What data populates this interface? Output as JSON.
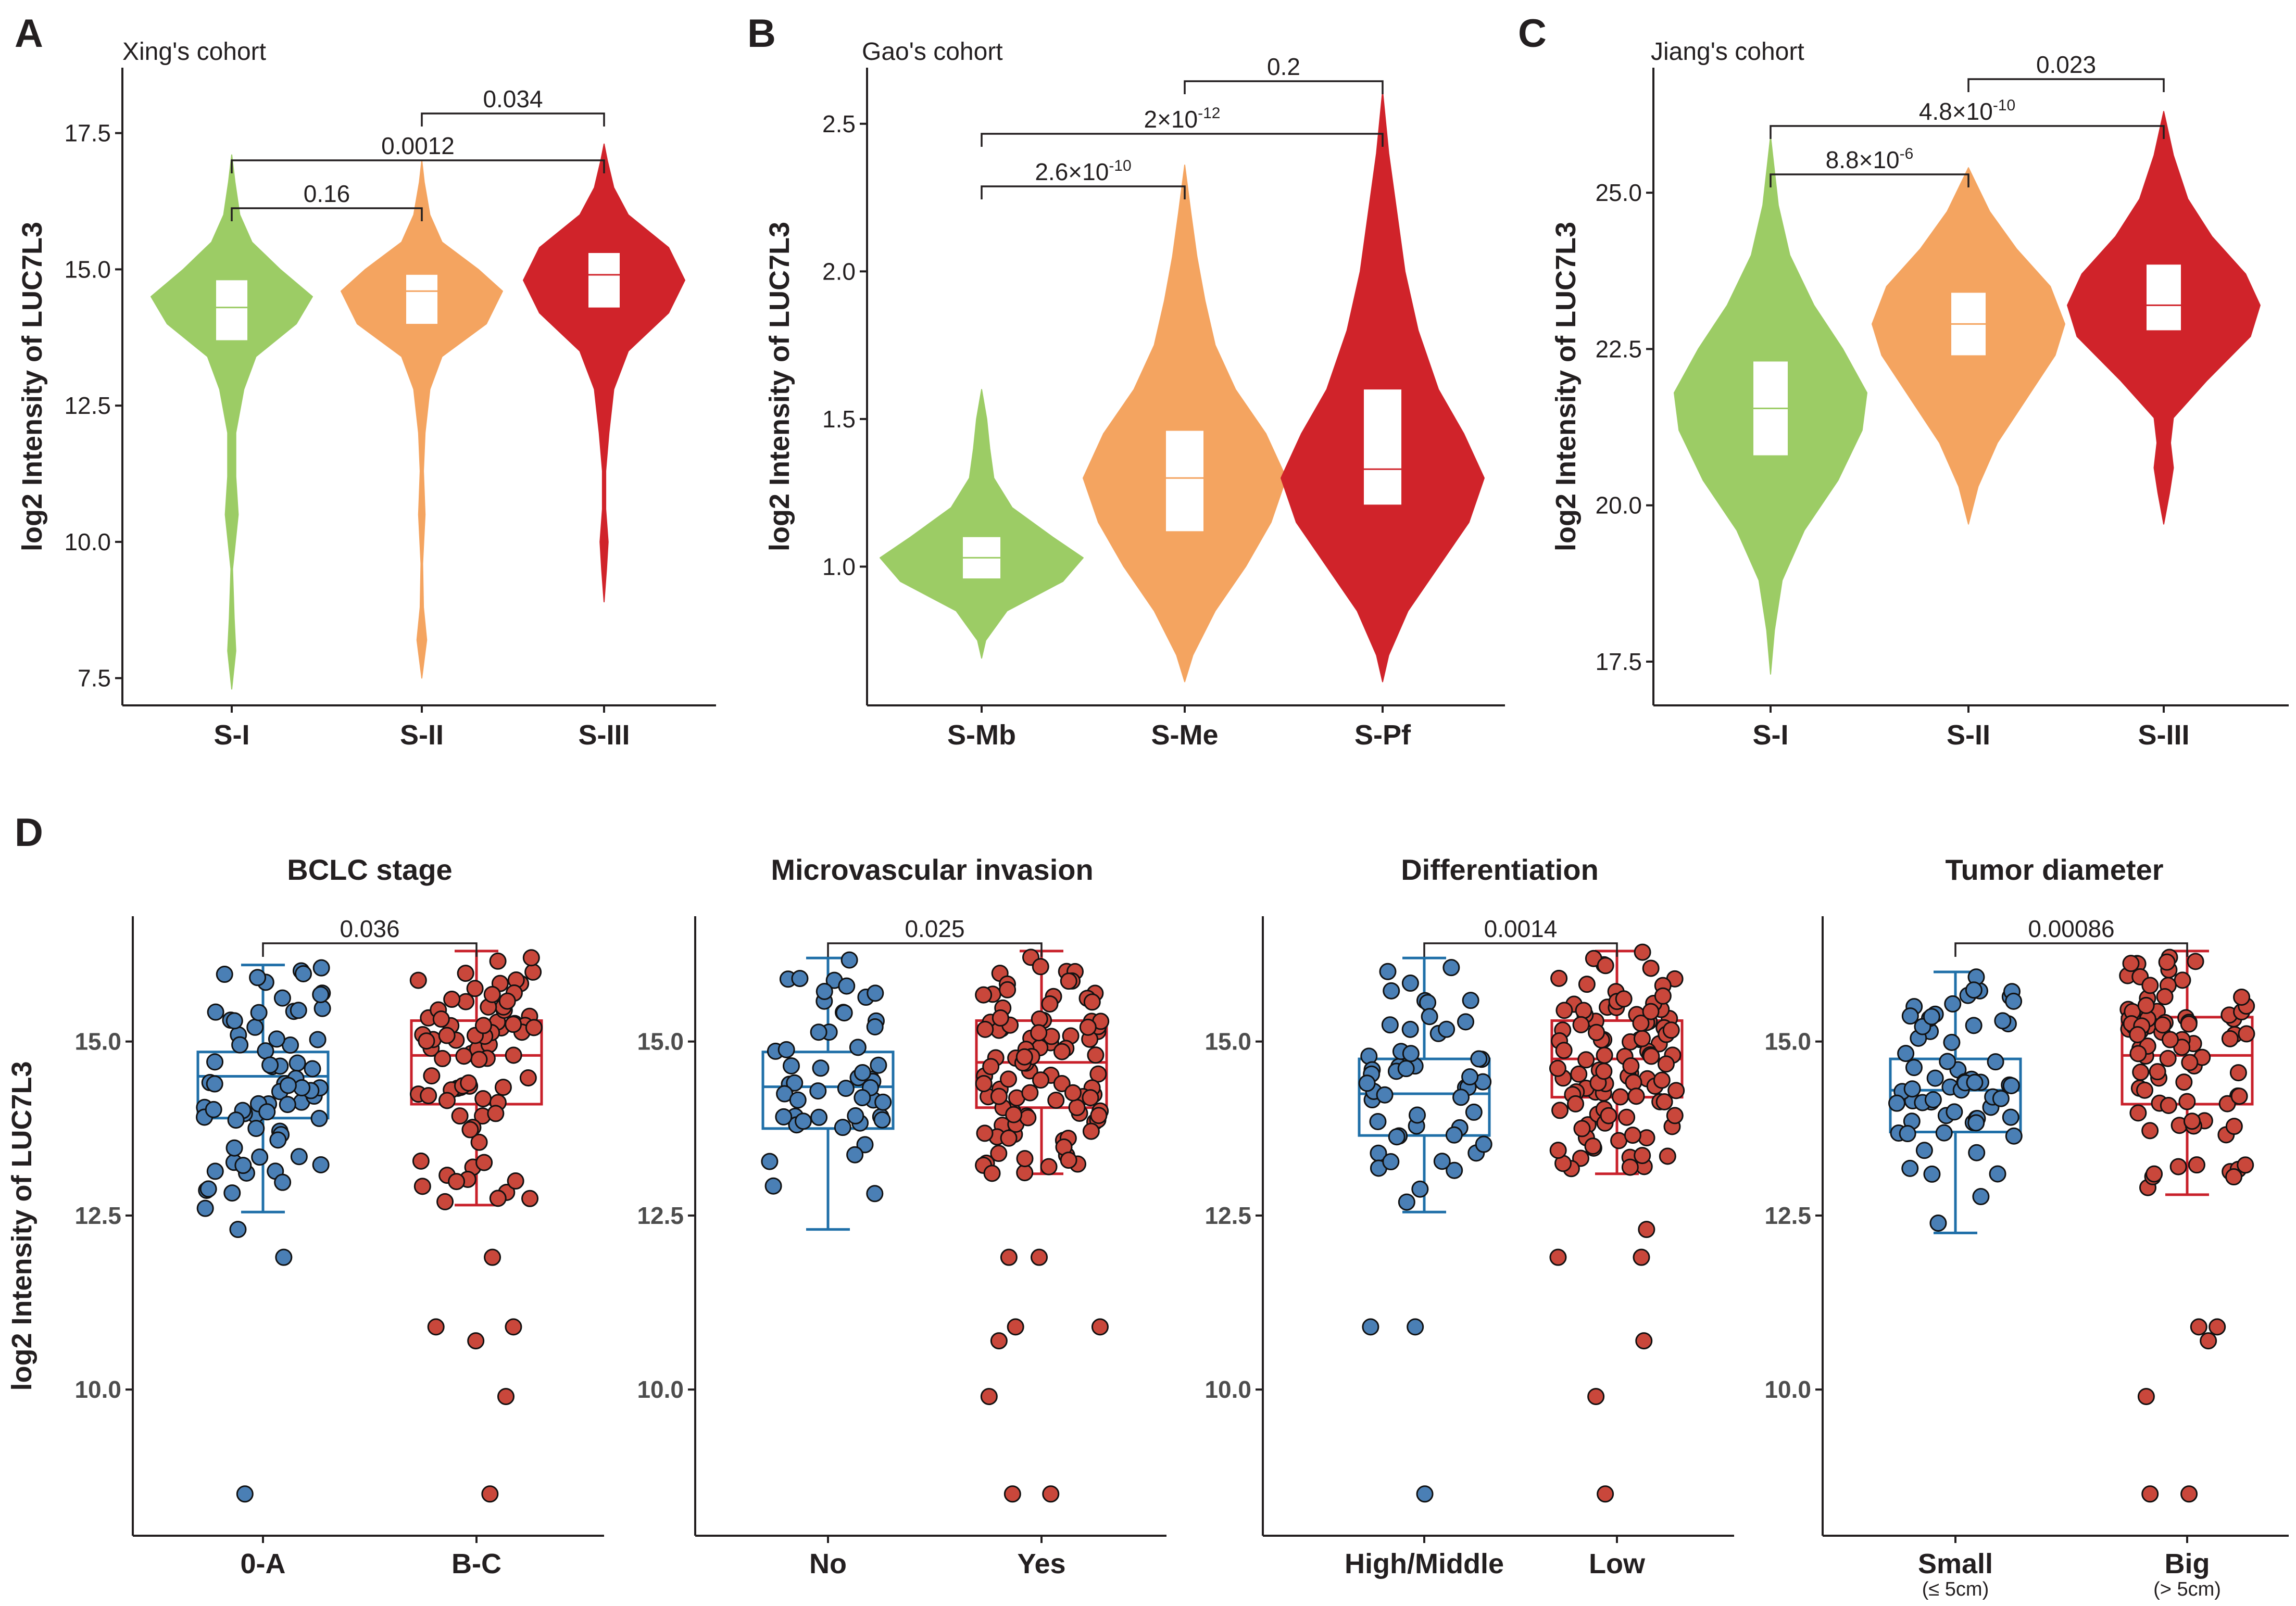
{
  "panels": [
    {
      "label": "A"
    },
    {
      "label": "B"
    },
    {
      "label": "C"
    },
    {
      "label": "D"
    }
  ],
  "colors": {
    "green": "#9ccc65",
    "orange": "#f4a460",
    "red": "#d0232a",
    "blue": "#1f6fa8",
    "blue_point": "#4a7fb5",
    "box_red": "#c8202a",
    "point_red": "#c9473b",
    "ink": "#231f20"
  },
  "shared_ylabel": "log2 Intensity of LUC7L3",
  "chart_data": [
    {
      "id": "A",
      "type": "violin",
      "title": "Xing's cohort",
      "ylabel": "log2 Intensity of LUC7L3",
      "ylim": [
        7.0,
        18.7
      ],
      "yticks": [
        7.5,
        10.0,
        12.5,
        15.0,
        17.5
      ],
      "ytick_labels": [
        "7.5",
        "10.0",
        "12.5",
        "15.0",
        "17.5"
      ],
      "categories": [
        "S-I",
        "S-II",
        "S-III"
      ],
      "violins": [
        {
          "group": "S-I",
          "color": "green",
          "min": 7.3,
          "max": 17.1,
          "q1": 13.7,
          "median": 14.3,
          "q3": 14.8,
          "profile": [
            [
              7.3,
              0.0
            ],
            [
              8.0,
              0.05
            ],
            [
              8.6,
              0.03
            ],
            [
              9.5,
              0.01
            ],
            [
              10.5,
              0.08
            ],
            [
              11.2,
              0.05
            ],
            [
              12.0,
              0.05
            ],
            [
              12.8,
              0.15
            ],
            [
              13.4,
              0.3
            ],
            [
              14.0,
              0.8
            ],
            [
              14.5,
              1.0
            ],
            [
              15.0,
              0.6
            ],
            [
              15.5,
              0.25
            ],
            [
              16.0,
              0.1
            ],
            [
              16.6,
              0.04
            ],
            [
              17.1,
              0.0
            ]
          ]
        },
        {
          "group": "S-II",
          "color": "orange",
          "min": 7.5,
          "max": 17.0,
          "q1": 14.0,
          "median": 14.6,
          "q3": 14.9,
          "profile": [
            [
              7.5,
              0.0
            ],
            [
              8.2,
              0.06
            ],
            [
              8.8,
              0.02
            ],
            [
              9.6,
              0.01
            ],
            [
              10.5,
              0.04
            ],
            [
              11.3,
              0.02
            ],
            [
              12.0,
              0.04
            ],
            [
              12.8,
              0.1
            ],
            [
              13.4,
              0.25
            ],
            [
              14.0,
              0.8
            ],
            [
              14.6,
              1.0
            ],
            [
              15.0,
              0.7
            ],
            [
              15.5,
              0.25
            ],
            [
              16.0,
              0.1
            ],
            [
              16.6,
              0.03
            ],
            [
              17.0,
              0.0
            ]
          ]
        },
        {
          "group": "S-III",
          "color": "red",
          "min": 8.9,
          "max": 17.3,
          "q1": 14.3,
          "median": 14.9,
          "q3": 15.3,
          "profile": [
            [
              8.9,
              0.0
            ],
            [
              9.5,
              0.03
            ],
            [
              10.0,
              0.05
            ],
            [
              10.6,
              0.02
            ],
            [
              11.3,
              0.02
            ],
            [
              12.0,
              0.06
            ],
            [
              12.8,
              0.12
            ],
            [
              13.5,
              0.3
            ],
            [
              14.2,
              0.8
            ],
            [
              14.8,
              1.0
            ],
            [
              15.4,
              0.8
            ],
            [
              16.0,
              0.3
            ],
            [
              16.5,
              0.12
            ],
            [
              17.0,
              0.04
            ],
            [
              17.3,
              0.0
            ]
          ]
        }
      ],
      "comparisons": [
        {
          "pair": [
            "S-I",
            "S-II"
          ],
          "p": "0.16",
          "level": 0
        },
        {
          "pair": [
            "S-I",
            "S-III"
          ],
          "p": "0.0012",
          "level": 1
        },
        {
          "pair": [
            "S-II",
            "S-III"
          ],
          "p": "0.034",
          "level": 2
        }
      ]
    },
    {
      "id": "B",
      "type": "violin",
      "title": "Gao's cohort",
      "ylabel": "log2 Intensity of LUC7L3",
      "ylim": [
        0.53,
        2.69
      ],
      "yticks": [
        1.0,
        1.5,
        2.0,
        2.5
      ],
      "ytick_labels": [
        "1.0",
        "1.5",
        "2.0",
        "2.5"
      ],
      "categories": [
        "S-Mb",
        "S-Me",
        "S-Pf"
      ],
      "violins": [
        {
          "group": "S-Mb",
          "color": "green",
          "min": 0.69,
          "max": 1.6,
          "q1": 0.96,
          "median": 1.03,
          "q3": 1.1,
          "profile": [
            [
              0.69,
              0.0
            ],
            [
              0.75,
              0.04
            ],
            [
              0.85,
              0.25
            ],
            [
              0.95,
              0.8
            ],
            [
              1.03,
              1.0
            ],
            [
              1.1,
              0.7
            ],
            [
              1.2,
              0.3
            ],
            [
              1.3,
              0.12
            ],
            [
              1.4,
              0.08
            ],
            [
              1.5,
              0.05
            ],
            [
              1.6,
              0.0
            ]
          ]
        },
        {
          "group": "S-Me",
          "color": "orange",
          "min": 0.61,
          "max": 2.36,
          "q1": 1.12,
          "median": 1.3,
          "q3": 1.46,
          "profile": [
            [
              0.61,
              0.0
            ],
            [
              0.7,
              0.08
            ],
            [
              0.85,
              0.3
            ],
            [
              1.0,
              0.6
            ],
            [
              1.15,
              0.85
            ],
            [
              1.3,
              1.0
            ],
            [
              1.45,
              0.8
            ],
            [
              1.6,
              0.5
            ],
            [
              1.75,
              0.3
            ],
            [
              1.9,
              0.2
            ],
            [
              2.05,
              0.12
            ],
            [
              2.2,
              0.06
            ],
            [
              2.36,
              0.0
            ]
          ]
        },
        {
          "group": "S-Pf",
          "color": "red",
          "min": 0.61,
          "max": 2.61,
          "q1": 1.21,
          "median": 1.33,
          "q3": 1.6,
          "profile": [
            [
              0.61,
              0.0
            ],
            [
              0.7,
              0.06
            ],
            [
              0.85,
              0.25
            ],
            [
              1.0,
              0.55
            ],
            [
              1.15,
              0.85
            ],
            [
              1.3,
              1.0
            ],
            [
              1.45,
              0.8
            ],
            [
              1.6,
              0.55
            ],
            [
              1.8,
              0.35
            ],
            [
              2.0,
              0.22
            ],
            [
              2.2,
              0.14
            ],
            [
              2.4,
              0.06
            ],
            [
              2.61,
              0.0
            ]
          ]
        }
      ],
      "comparisons": [
        {
          "pair": [
            "S-Mb",
            "S-Me"
          ],
          "p_mant": "2.6",
          "p_exp": "-10",
          "level": 0
        },
        {
          "pair": [
            "S-Mb",
            "S-Pf"
          ],
          "p_mant": "2",
          "p_exp": "-12",
          "level": 1
        },
        {
          "pair": [
            "S-Me",
            "S-Pf"
          ],
          "p": "0.2",
          "level": 2
        }
      ]
    },
    {
      "id": "C",
      "type": "violin",
      "title": "Jiang's cohort",
      "ylabel": "log2 Intensity of LUC7L3",
      "ylim": [
        16.8,
        27.0
      ],
      "yticks": [
        17.5,
        20.0,
        22.5,
        25.0
      ],
      "ytick_labels": [
        "17.5",
        "20.0",
        "22.5",
        "25.0"
      ],
      "categories": [
        "S-I",
        "S-II",
        "S-III"
      ],
      "violins": [
        {
          "group": "S-I",
          "color": "green",
          "min": 17.3,
          "max": 25.9,
          "q1": 20.8,
          "median": 21.55,
          "q3": 22.3,
          "profile": [
            [
              17.3,
              0.0
            ],
            [
              18.0,
              0.04
            ],
            [
              18.8,
              0.12
            ],
            [
              19.6,
              0.35
            ],
            [
              20.4,
              0.7
            ],
            [
              21.2,
              0.95
            ],
            [
              21.8,
              1.0
            ],
            [
              22.5,
              0.75
            ],
            [
              23.2,
              0.45
            ],
            [
              24.0,
              0.2
            ],
            [
              24.8,
              0.08
            ],
            [
              25.9,
              0.0
            ]
          ]
        },
        {
          "group": "S-II",
          "color": "orange",
          "min": 19.7,
          "max": 25.4,
          "q1": 22.4,
          "median": 22.9,
          "q3": 23.4,
          "profile": [
            [
              19.7,
              0.0
            ],
            [
              20.3,
              0.1
            ],
            [
              21.0,
              0.3
            ],
            [
              21.7,
              0.6
            ],
            [
              22.4,
              0.9
            ],
            [
              22.9,
              1.0
            ],
            [
              23.5,
              0.85
            ],
            [
              24.1,
              0.5
            ],
            [
              24.7,
              0.22
            ],
            [
              25.4,
              0.0
            ]
          ]
        },
        {
          "group": "S-III",
          "color": "red",
          "min": 19.7,
          "max": 26.3,
          "q1": 22.8,
          "median": 23.2,
          "q3": 23.85,
          "profile": [
            [
              19.7,
              0.0
            ],
            [
              20.2,
              0.06
            ],
            [
              20.6,
              0.1
            ],
            [
              21.0,
              0.07
            ],
            [
              21.4,
              0.1
            ],
            [
              22.0,
              0.45
            ],
            [
              22.7,
              0.9
            ],
            [
              23.2,
              1.0
            ],
            [
              23.7,
              0.85
            ],
            [
              24.3,
              0.5
            ],
            [
              24.9,
              0.25
            ],
            [
              25.6,
              0.1
            ],
            [
              26.3,
              0.0
            ]
          ]
        }
      ],
      "comparisons": [
        {
          "pair": [
            "S-I",
            "S-II"
          ],
          "p_mant": "8.8",
          "p_exp": "-6",
          "level": 0
        },
        {
          "pair": [
            "S-I",
            "S-III"
          ],
          "p_mant": "4.8",
          "p_exp": "-10",
          "level": 1
        },
        {
          "pair": [
            "S-II",
            "S-III"
          ],
          "p": "0.023",
          "level": 2
        }
      ]
    },
    {
      "id": "D1",
      "type": "box",
      "title": "BCLC stage",
      "ylabel": "log2 Intensity of LUC7L3",
      "ylim": [
        7.9,
        16.8
      ],
      "yticks": [
        10.0,
        12.5,
        15.0
      ],
      "ytick_labels": [
        "10.0",
        "12.5",
        "15.0"
      ],
      "categories": [
        "0-A",
        "B-C"
      ],
      "subtitles": [
        "",
        ""
      ],
      "boxes": [
        {
          "group": "0-A",
          "color": "blue",
          "whisker_low": 12.55,
          "q1": 13.9,
          "median": 14.5,
          "q3": 14.85,
          "whisker_high": 16.1,
          "n": 70,
          "outliers": [
            12.3,
            11.9,
            8.5
          ]
        },
        {
          "group": "B-C",
          "color": "box_red",
          "whisker_low": 12.65,
          "q1": 14.1,
          "median": 14.8,
          "q3": 15.3,
          "whisker_high": 16.3,
          "n": 80,
          "outliers": [
            11.9,
            10.9,
            10.9,
            10.7,
            9.9,
            8.5
          ]
        }
      ],
      "comparison": {
        "p": "0.036"
      }
    },
    {
      "id": "D2",
      "type": "box",
      "title": "Microvascular invasion",
      "ylabel": "",
      "ylim": [
        7.9,
        16.8
      ],
      "yticks": [
        10.0,
        12.5,
        15.0
      ],
      "ytick_labels": [
        "10.0",
        "12.5",
        "15.0"
      ],
      "categories": [
        "No",
        "Yes"
      ],
      "subtitles": [
        "",
        ""
      ],
      "boxes": [
        {
          "group": "No",
          "color": "blue",
          "whisker_low": 12.3,
          "q1": 13.75,
          "median": 14.35,
          "q3": 14.85,
          "whisker_high": 16.2,
          "n": 50,
          "outliers": []
        },
        {
          "group": "Yes",
          "color": "box_red",
          "whisker_low": 13.1,
          "q1": 14.05,
          "median": 14.7,
          "q3": 15.3,
          "whisker_high": 16.3,
          "n": 100,
          "outliers": [
            11.9,
            11.9,
            10.9,
            10.9,
            10.7,
            9.9,
            8.5,
            8.5
          ]
        }
      ],
      "comparison": {
        "p": "0.025"
      }
    },
    {
      "id": "D3",
      "type": "box",
      "title": "Differentiation",
      "ylabel": "",
      "ylim": [
        7.9,
        16.8
      ],
      "yticks": [
        10.0,
        12.5,
        15.0
      ],
      "ytick_labels": [
        "10.0",
        "12.5",
        "15.0"
      ],
      "categories": [
        "High/Middle",
        "Low"
      ],
      "subtitles": [
        "",
        ""
      ],
      "boxes": [
        {
          "group": "High/Middle",
          "color": "blue",
          "whisker_low": 12.55,
          "q1": 13.65,
          "median": 14.25,
          "q3": 14.75,
          "whisker_high": 16.2,
          "n": 50,
          "outliers": [
            10.9,
            10.9,
            8.5
          ]
        },
        {
          "group": "Low",
          "color": "box_red",
          "whisker_low": 13.1,
          "q1": 14.2,
          "median": 14.75,
          "q3": 15.3,
          "whisker_high": 16.3,
          "n": 100,
          "outliers": [
            12.3,
            11.9,
            11.9,
            10.7,
            9.9,
            8.5
          ]
        }
      ],
      "comparison": {
        "p": "0.0014"
      }
    },
    {
      "id": "D4",
      "type": "box",
      "title": "Tumor diameter",
      "ylabel": "",
      "ylim": [
        7.9,
        16.8
      ],
      "yticks": [
        10.0,
        12.5,
        15.0
      ],
      "ytick_labels": [
        "10.0",
        "12.5",
        "15.0"
      ],
      "categories": [
        "Small",
        "Big"
      ],
      "subtitles": [
        "(≤ 5cm)",
        "(> 5cm)"
      ],
      "boxes": [
        {
          "group": "Small",
          "color": "blue",
          "whisker_low": 12.25,
          "q1": 13.7,
          "median": 14.3,
          "q3": 14.75,
          "whisker_high": 16.0,
          "n": 65,
          "outliers": []
        },
        {
          "group": "Big",
          "color": "box_red",
          "whisker_low": 12.8,
          "q1": 14.1,
          "median": 14.8,
          "q3": 15.35,
          "whisker_high": 16.3,
          "n": 85,
          "outliers": [
            10.9,
            10.9,
            10.7,
            9.9,
            8.5,
            8.5
          ]
        }
      ],
      "comparison": {
        "p": "0.00086"
      }
    }
  ]
}
